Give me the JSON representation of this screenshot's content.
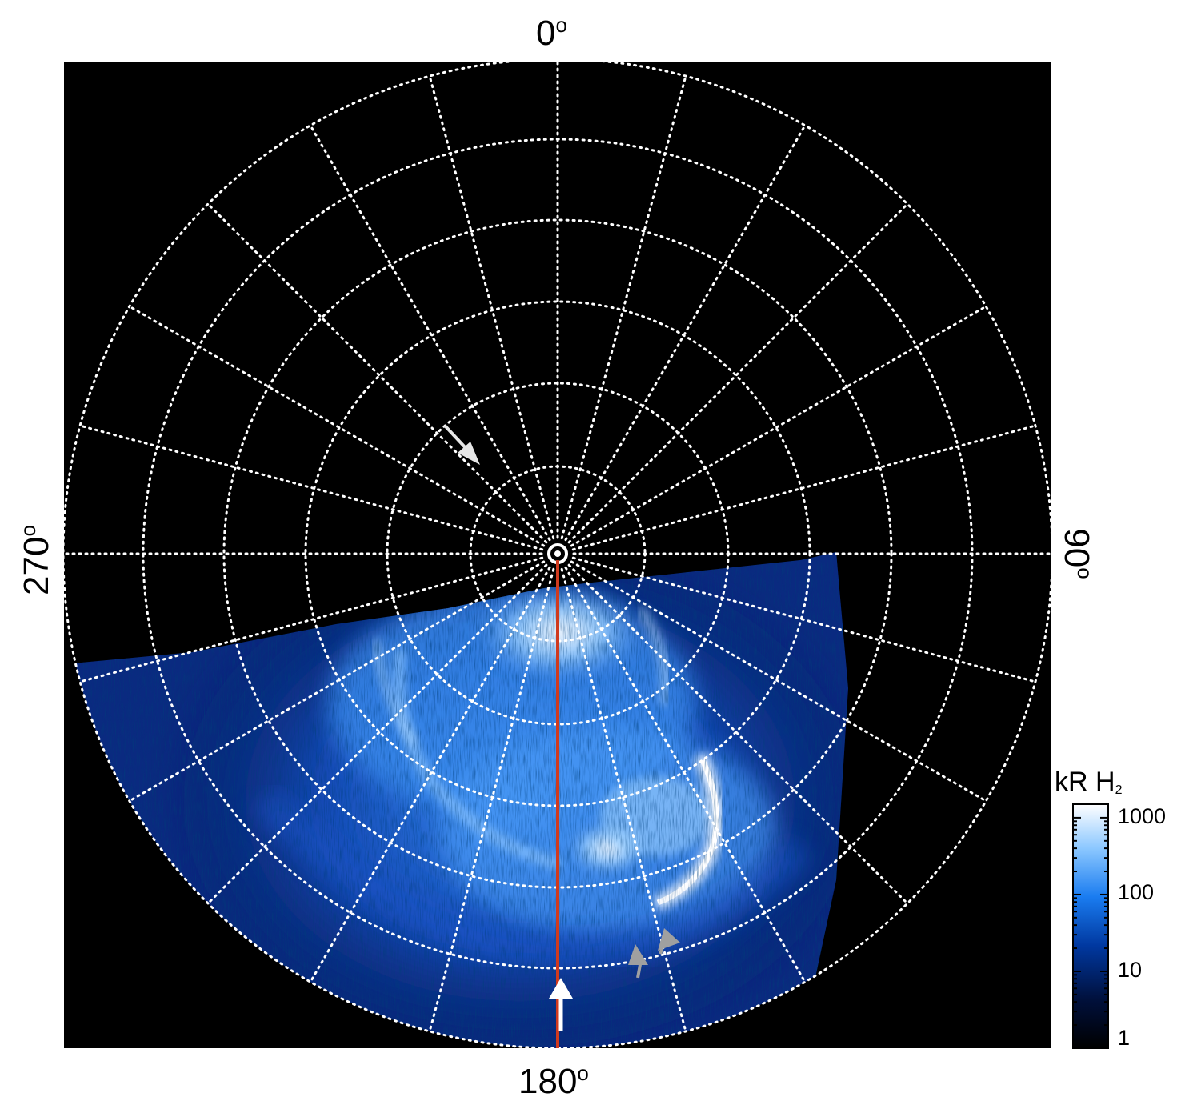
{
  "figure": {
    "directions": {
      "top": "0",
      "right": "90",
      "bottom": "180",
      "left": "270",
      "degree_symbol": "o"
    },
    "colorbar": {
      "title": "kR H",
      "title_subscript": "2",
      "ticks": [
        "1",
        "10",
        "100",
        "1000"
      ],
      "scale": "log",
      "range": [
        1,
        1500
      ],
      "colors": [
        "#000000",
        "#00103c",
        "#0038a0",
        "#1a7cf0",
        "#8cc8ff",
        "#ffffff"
      ]
    },
    "colors": {
      "background": "#000000",
      "grid": "#ffffff",
      "meridian_line": "#d03a1e",
      "arrow_white": "#ffffff",
      "arrow_gray": "#a0a0a0"
    },
    "grid": {
      "rings": 6,
      "spokes": 24,
      "style": "dotted"
    }
  }
}
